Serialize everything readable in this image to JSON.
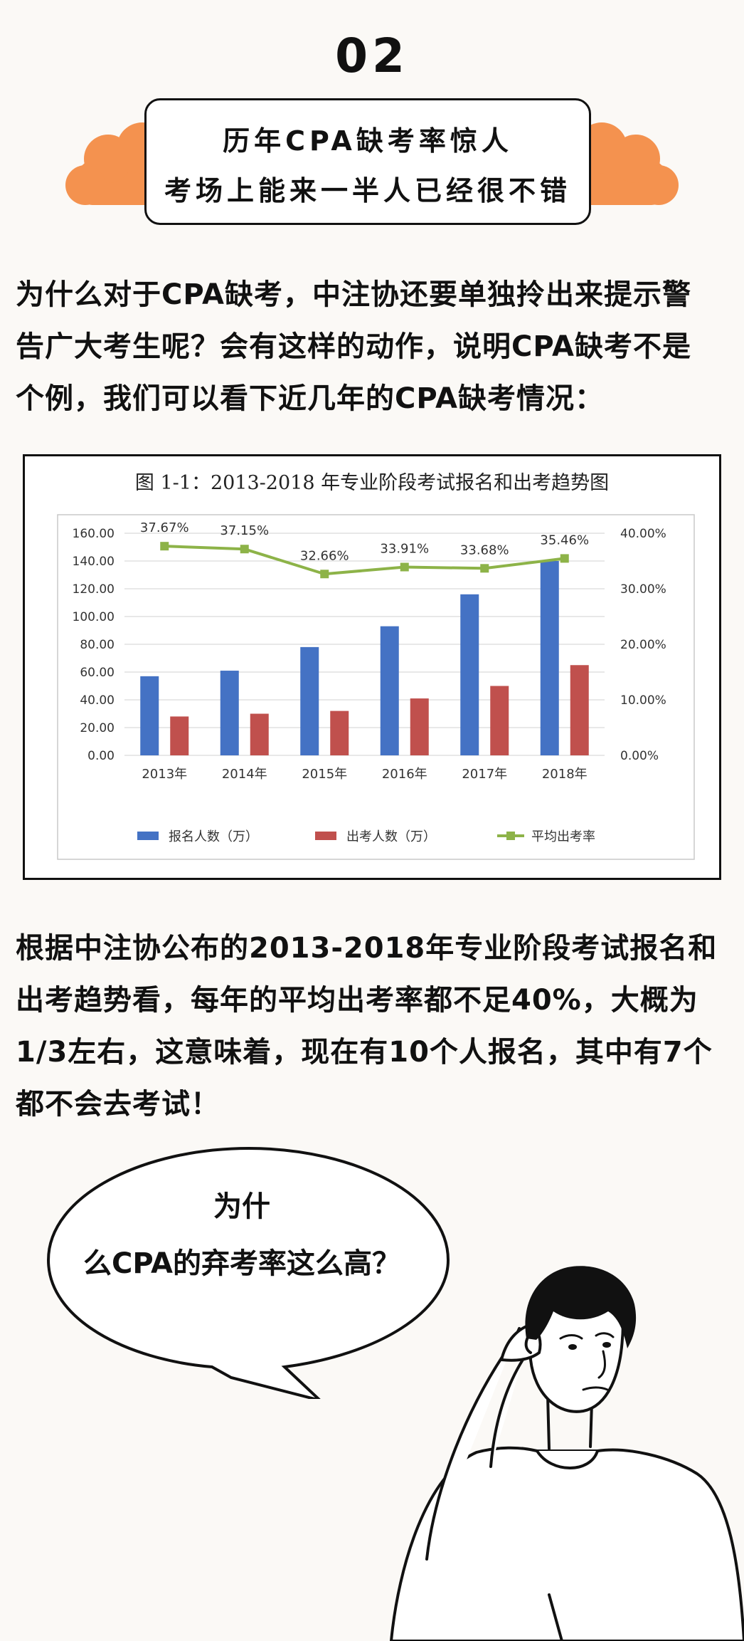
{
  "section_number": "02",
  "title": {
    "line1": "历年CPA缺考率惊人",
    "line2": "考场上能来一半人已经很不错"
  },
  "intro": {
    "lines": [
      "为什么对于CPA缺考，中注协还要单独拎出来提示警",
      "告广大考生呢？会有这样的动作，说明CPA缺考不是",
      "个例，我们可以看下近几年的CPA缺考情况："
    ]
  },
  "chart_data": {
    "type": "bar",
    "title": "图 1-1：2013-2018 年专业阶段考试报名和出考趋势图",
    "categories": [
      "2013年",
      "2014年",
      "2015年",
      "2016年",
      "2017年",
      "2018年"
    ],
    "series": [
      {
        "name": "报名人数（万）",
        "type": "bar",
        "axis": "left",
        "color": "#4472c4",
        "values": [
          57,
          61,
          78,
          93,
          116,
          140
        ]
      },
      {
        "name": "出考人数（万）",
        "type": "bar",
        "axis": "left",
        "color": "#c0504d",
        "values": [
          28,
          30,
          32,
          41,
          50,
          65
        ]
      },
      {
        "name": "平均出考率",
        "type": "line",
        "axis": "right",
        "color": "#8db348",
        "values": [
          37.67,
          37.15,
          32.66,
          33.91,
          33.68,
          35.46
        ],
        "labels": [
          "37.67%",
          "37.15%",
          "32.66%",
          "33.91%",
          "33.68%",
          "35.46%"
        ]
      }
    ],
    "ylim_left": [
      0,
      160
    ],
    "yticks_left": [
      "0.00",
      "20.00",
      "40.00",
      "60.00",
      "80.00",
      "100.00",
      "120.00",
      "140.00",
      "160.00"
    ],
    "ylim_right": [
      0,
      40
    ],
    "yticks_right": [
      "0.00%",
      "10.00%",
      "20.00%",
      "30.00%",
      "40.00%"
    ],
    "grid": true,
    "legend": "bottom"
  },
  "conclusion": {
    "lines": [
      "根据中注协公布的2013-2018年专业阶段考试报名和",
      "出考趋势看，每年的平均出考率都不足40%，大概为",
      "1/3左右，这意味着，现在有10个人报名，其中有7个",
      "都不会去考试！"
    ]
  },
  "bubble": {
    "line1": "为什",
    "line2": "么CPA的弃考率这么高？"
  },
  "colors": {
    "accent_orange": "#f4924f",
    "background": "#fbf9f6"
  }
}
